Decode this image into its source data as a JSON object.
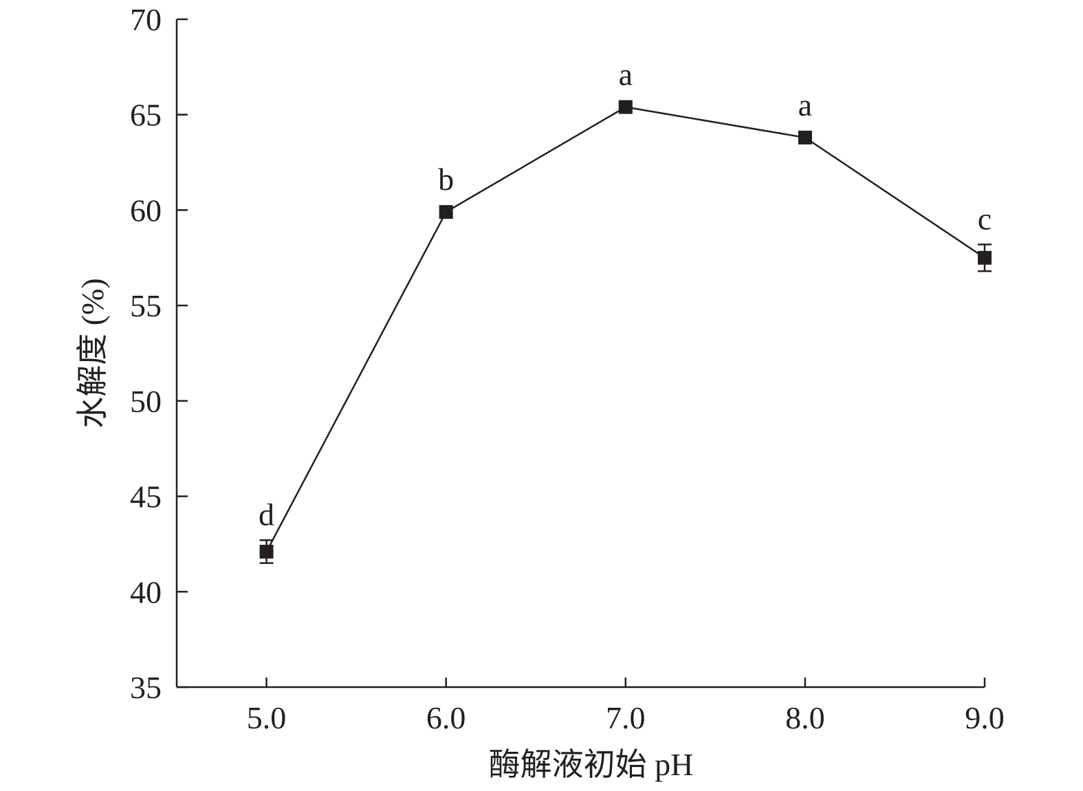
{
  "chart_data": {
    "type": "line",
    "title": "",
    "xlabel": "酶解液初始 pH",
    "ylabel": "水解度 (%)",
    "x": [
      5.0,
      6.0,
      7.0,
      8.0,
      9.0
    ],
    "x_tick_labels": [
      "5.0",
      "6.0",
      "7.0",
      "8.0",
      "9.0"
    ],
    "xlim": [
      4.5,
      9.0
    ],
    "ylim": [
      35,
      70
    ],
    "y_ticks": [
      35,
      40,
      45,
      50,
      55,
      60,
      65,
      70
    ],
    "y_tick_labels": [
      "35",
      "40",
      "45",
      "50",
      "55",
      "60",
      "65",
      "70"
    ],
    "grid": false,
    "series": [
      {
        "values": [
          42.1,
          59.9,
          65.4,
          63.8,
          57.5
        ],
        "errors": [
          0.6,
          0.3,
          0.2,
          0.2,
          0.7
        ],
        "significance": [
          "d",
          "b",
          "a",
          "a",
          "c"
        ],
        "marker": "square",
        "color": "#231f20"
      }
    ]
  }
}
